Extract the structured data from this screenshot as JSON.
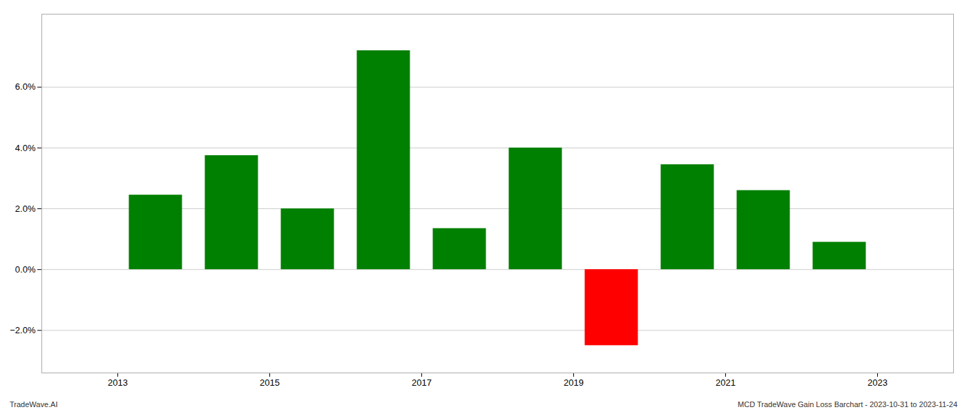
{
  "chart_data": {
    "type": "bar",
    "x": [
      2013,
      2014,
      2015,
      2016,
      2017,
      2018,
      2019,
      2020,
      2021,
      2022
    ],
    "values": [
      0.0245,
      0.0375,
      0.02,
      0.072,
      0.0135,
      0.04,
      -0.025,
      0.0345,
      0.026,
      0.009
    ],
    "colors": [
      "#008000",
      "#008000",
      "#008000",
      "#008000",
      "#008000",
      "#008000",
      "#ff0000",
      "#008000",
      "#008000",
      "#008000"
    ],
    "xlim": [
      2012,
      2024
    ],
    "xticks": [
      2013,
      2015,
      2017,
      2019,
      2021,
      2023
    ],
    "ylim": [
      -0.034,
      0.084
    ],
    "yticks": [
      {
        "value": -0.02,
        "label": "−2.0%"
      },
      {
        "value": 0,
        "label": "0.0%"
      },
      {
        "value": 0.02,
        "label": "2.0%"
      },
      {
        "value": 0.04,
        "label": "4.0%"
      },
      {
        "value": 0.06,
        "label": "6.0%"
      }
    ],
    "grid": true,
    "annotations": [
      "TradeWave.AI",
      "MCD TradeWave Gain Loss Barchart - 2023-10-31 to 2023-11-24"
    ]
  }
}
